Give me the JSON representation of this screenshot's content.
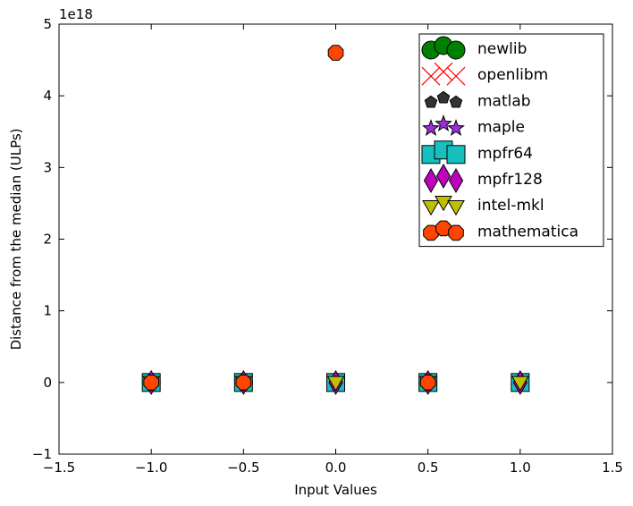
{
  "chart_data": {
    "type": "scatter",
    "xlabel": "Input Values",
    "ylabel": "Distance from the median (ULPs)",
    "y_offset_label": "1e18",
    "xlim": [
      -1.5,
      1.5
    ],
    "ylim": [
      -1,
      5
    ],
    "xticks": [
      -1.5,
      -1.0,
      -0.5,
      0.0,
      0.5,
      1.0,
      1.5
    ],
    "xtick_labels": [
      "−1.5",
      "−1.0",
      "−0.5",
      "0.0",
      "0.5",
      "1.0",
      "1.5"
    ],
    "yticks": [
      -1,
      0,
      1,
      2,
      3,
      4,
      5
    ],
    "ytick_labels": [
      "−1",
      "0",
      "1",
      "2",
      "3",
      "4",
      "5"
    ],
    "grid": false,
    "legend_position": "top-right",
    "series": [
      {
        "name": "newlib",
        "marker": "circle",
        "color": "#008000",
        "points": [
          [
            -1.0,
            0
          ],
          [
            -0.5,
            0
          ],
          [
            0.5,
            0
          ]
        ]
      },
      {
        "name": "openlibm",
        "marker": "x",
        "color": "#ff0000",
        "points": [
          [
            -1.0,
            0
          ],
          [
            -0.5,
            0
          ],
          [
            0.0,
            0
          ],
          [
            0.5,
            0
          ],
          [
            1.0,
            0
          ]
        ]
      },
      {
        "name": "matlab",
        "marker": "pentagon",
        "color": "#333333",
        "points": [
          [
            -1.0,
            0
          ],
          [
            -0.5,
            0
          ],
          [
            0.0,
            0
          ],
          [
            0.5,
            0
          ],
          [
            1.0,
            0
          ]
        ]
      },
      {
        "name": "maple",
        "marker": "star",
        "color": "#9b30d9",
        "points": [
          [
            -1.0,
            0
          ],
          [
            -0.5,
            0
          ],
          [
            0.0,
            0
          ],
          [
            0.5,
            0
          ],
          [
            1.0,
            0
          ]
        ]
      },
      {
        "name": "mpfr64",
        "marker": "square",
        "color": "#17bfbf",
        "points": [
          [
            -1.0,
            0
          ],
          [
            -0.5,
            0
          ],
          [
            0.0,
            0
          ],
          [
            0.5,
            0
          ],
          [
            1.0,
            0
          ]
        ]
      },
      {
        "name": "mpfr128",
        "marker": "diamond",
        "color": "#bf00bf",
        "points": [
          [
            -1.0,
            0
          ],
          [
            -0.5,
            0
          ],
          [
            0.0,
            0
          ],
          [
            0.5,
            0
          ],
          [
            1.0,
            0
          ]
        ]
      },
      {
        "name": "intel-mkl",
        "marker": "triangle-down",
        "color": "#bfbf00",
        "points": [
          [
            -1.0,
            0
          ],
          [
            -0.5,
            0
          ],
          [
            0.0,
            0
          ],
          [
            0.5,
            0
          ],
          [
            1.0,
            0
          ]
        ]
      },
      {
        "name": "mathematica",
        "marker": "octagon",
        "color": "#ff4500",
        "points": [
          [
            -1.0,
            0
          ],
          [
            -0.5,
            0
          ],
          [
            0.0,
            4.6
          ],
          [
            0.5,
            0
          ]
        ]
      }
    ]
  }
}
